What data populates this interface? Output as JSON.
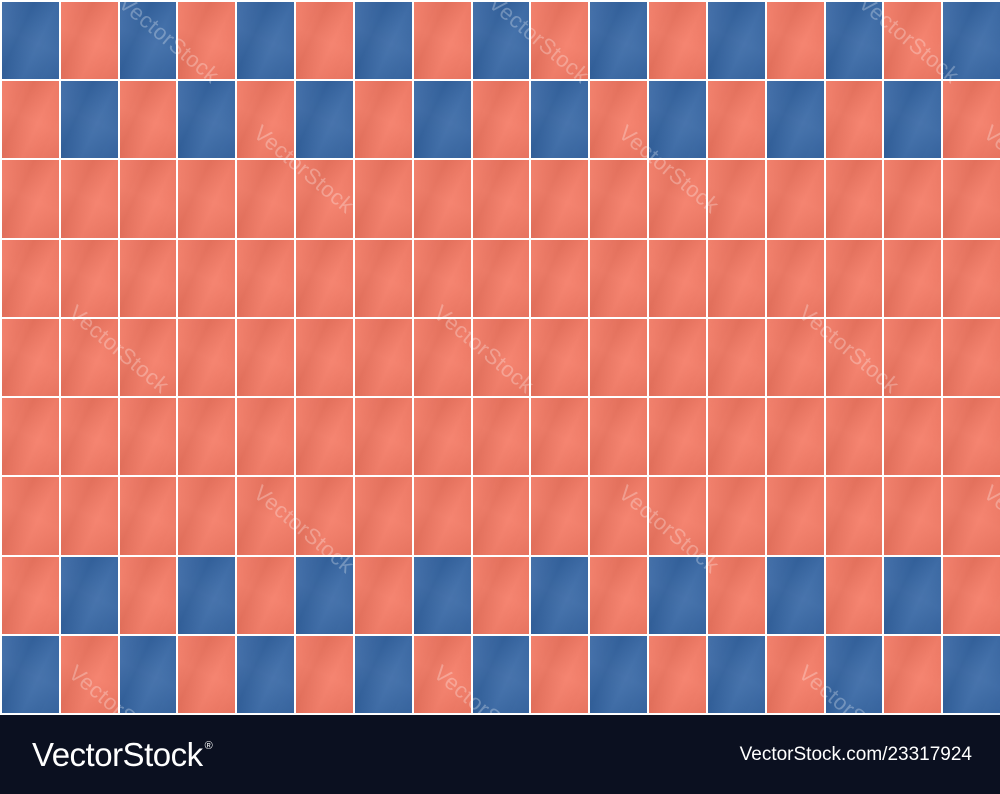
{
  "image": {
    "subject": "ceramic tile wall pattern",
    "colors": {
      "coral": "#f47761",
      "blue": "#3465a4",
      "grout": "#ffffff",
      "footer_background": "#0b1020"
    },
    "grid": {
      "columns": 17,
      "rows": 9,
      "tile_pattern": [
        "BCBCBCBCBCBCBCBCB",
        "CBCBCBCBCBCBCBCBC",
        "CCCCCCCCCCCCCCCCC",
        "CCCCCCCCCCCCCCCCC",
        "CCCCCCCCCCCCCCCCC",
        "CCCCCCCCCCCCCCCCC",
        "CCCCCCCCCCCCCCCCC",
        "CBCBCBCBCBCBCBCBC",
        "BCBCBCBCBCBCBCBCB"
      ]
    },
    "watermark_text": "VectorStock"
  },
  "footer": {
    "logo_text": "VectorStock",
    "logo_mark": "®",
    "image_id": "VectorStock.com/23317924"
  }
}
